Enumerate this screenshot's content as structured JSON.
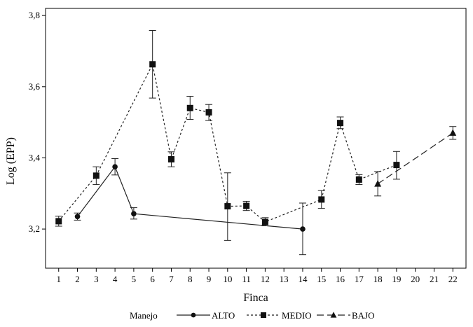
{
  "chart_data": {
    "type": "line",
    "xlabel": "Finca",
    "ylabel": "Log (EPP)",
    "x_ticks": [
      1,
      2,
      3,
      4,
      5,
      6,
      7,
      8,
      9,
      10,
      11,
      12,
      13,
      14,
      15,
      16,
      17,
      18,
      19,
      20,
      21,
      22
    ],
    "y_ticks": [
      "3,2",
      "3,4",
      "3,6",
      "3,8"
    ],
    "y_tick_values": [
      3.2,
      3.4,
      3.6,
      3.8
    ],
    "xlim": [
      0.3,
      22.7
    ],
    "ylim": [
      3.09,
      3.82
    ],
    "grid": false,
    "legend": {
      "title": "Manejo",
      "placement": "bottom"
    },
    "series": [
      {
        "name": "ALTO",
        "marker": "circle",
        "dash": "solid",
        "points": [
          {
            "x": 2,
            "y": 3.235,
            "lo": 3.225,
            "hi": 3.245
          },
          {
            "x": 4,
            "y": 3.375,
            "lo": 3.352,
            "hi": 3.398
          },
          {
            "x": 5,
            "y": 3.243,
            "lo": 3.228,
            "hi": 3.26
          },
          {
            "x": 14,
            "y": 3.2,
            "lo": 3.128,
            "hi": 3.273
          }
        ]
      },
      {
        "name": "MEDIO",
        "marker": "square",
        "dash": "dotted",
        "points": [
          {
            "x": 1,
            "y": 3.222,
            "lo": 3.208,
            "hi": 3.236
          },
          {
            "x": 3,
            "y": 3.35,
            "lo": 3.325,
            "hi": 3.375
          },
          {
            "x": 6,
            "y": 3.663,
            "lo": 3.568,
            "hi": 3.758
          },
          {
            "x": 7,
            "y": 3.396,
            "lo": 3.375,
            "hi": 3.417
          },
          {
            "x": 8,
            "y": 3.54,
            "lo": 3.508,
            "hi": 3.573
          },
          {
            "x": 9,
            "y": 3.528,
            "lo": 3.505,
            "hi": 3.55
          },
          {
            "x": 10,
            "y": 3.264,
            "lo": 3.168,
            "hi": 3.358
          },
          {
            "x": 11,
            "y": 3.265,
            "lo": 3.252,
            "hi": 3.278
          },
          {
            "x": 12,
            "y": 3.22,
            "lo": 3.209,
            "hi": 3.232
          },
          {
            "x": 15,
            "y": 3.283,
            "lo": 3.258,
            "hi": 3.308
          },
          {
            "x": 16,
            "y": 3.498,
            "lo": 3.482,
            "hi": 3.515
          },
          {
            "x": 17,
            "y": 3.339,
            "lo": 3.325,
            "hi": 3.353
          },
          {
            "x": 19,
            "y": 3.38,
            "lo": 3.34,
            "hi": 3.418
          }
        ]
      },
      {
        "name": "BAJO",
        "marker": "triangle",
        "dash": "dashed",
        "points": [
          {
            "x": 18,
            "y": 3.327,
            "lo": 3.293,
            "hi": 3.362
          },
          {
            "x": 22,
            "y": 3.47,
            "lo": 3.452,
            "hi": 3.488
          }
        ]
      }
    ]
  }
}
